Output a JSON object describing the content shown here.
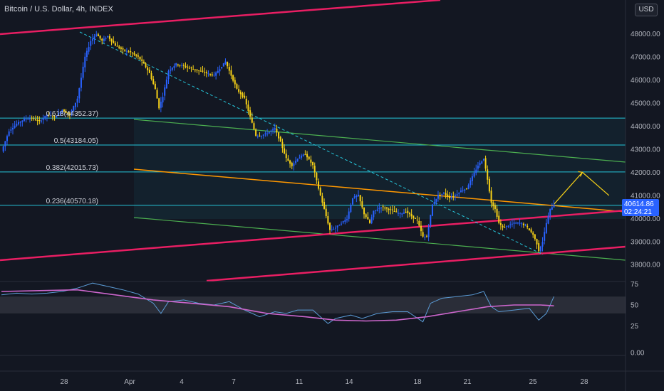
{
  "header": {
    "title": "Bitcoin / U.S. Dollar, 4h, INDEX",
    "currency": "USD"
  },
  "price_label": {
    "value": "40614.86",
    "countdown": "02:24:21"
  },
  "colors": {
    "background": "#131722",
    "up": "#2962ff",
    "down": "#f7d117",
    "fib": "#26c6da",
    "channel_pink": "#e91e63",
    "trend_green": "#4caf50",
    "trend_orange": "#ff9800",
    "rsi": "#cc66cc",
    "projection": "#f7d117"
  },
  "chart_data": {
    "type": "candlestick",
    "title": "Bitcoin / U.S. Dollar, 4h, INDEX",
    "price_axis": {
      "ticks": [
        "48000.00",
        "47000.00",
        "46000.00",
        "45000.00",
        "44000.00",
        "43000.00",
        "42000.00",
        "41000.00",
        "40000.00",
        "39000.00",
        "38000.00"
      ],
      "ylim": [
        37500,
        48800
      ]
    },
    "time_axis": {
      "labels": [
        "28",
        "Apr",
        "4",
        "7",
        "11",
        "14",
        "18",
        "21",
        "25",
        "28"
      ]
    },
    "fib_levels": [
      {
        "ratio": "0.618",
        "value": "44352.37",
        "label": "0.618(44352.37)"
      },
      {
        "ratio": "0.5",
        "value": "43184.05",
        "label": "0.5(43184.05)"
      },
      {
        "ratio": "0.382",
        "value": "42015.73",
        "label": "0.382(42015.73)"
      },
      {
        "ratio": "0.236",
        "value": "40570.18",
        "label": "0.236(40570.18)"
      }
    ],
    "price_path": [
      [
        0,
        42900
      ],
      [
        4,
        43800
      ],
      [
        8,
        44100
      ],
      [
        12,
        44300
      ],
      [
        16,
        44350
      ],
      [
        20,
        44200
      ],
      [
        24,
        44500
      ],
      [
        28,
        44400
      ],
      [
        32,
        44700
      ],
      [
        36,
        44500
      ],
      [
        40,
        45200
      ],
      [
        44,
        47000
      ],
      [
        47,
        47700
      ],
      [
        50,
        48000
      ],
      [
        53,
        47700
      ],
      [
        56,
        47900
      ],
      [
        60,
        47500
      ],
      [
        64,
        47300
      ],
      [
        68,
        47200
      ],
      [
        72,
        47000
      ],
      [
        75,
        46700
      ],
      [
        78,
        46300
      ],
      [
        81,
        45600
      ],
      [
        83,
        44800
      ],
      [
        85,
        45300
      ],
      [
        88,
        46400
      ],
      [
        92,
        46700
      ],
      [
        96,
        46600
      ],
      [
        100,
        46500
      ],
      [
        104,
        46400
      ],
      [
        108,
        46300
      ],
      [
        112,
        46200
      ],
      [
        116,
        46600
      ],
      [
        118,
        46800
      ],
      [
        121,
        46200
      ],
      [
        124,
        45600
      ],
      [
        128,
        45200
      ],
      [
        131,
        44400
      ],
      [
        134,
        43600
      ],
      [
        137,
        43600
      ],
      [
        140,
        43700
      ],
      [
        144,
        43900
      ],
      [
        147,
        43300
      ],
      [
        150,
        42600
      ],
      [
        153,
        42300
      ],
      [
        156,
        42600
      ],
      [
        160,
        42800
      ],
      [
        164,
        42300
      ],
      [
        167,
        41300
      ],
      [
        170,
        40400
      ],
      [
        173,
        39500
      ],
      [
        176,
        39600
      ],
      [
        179,
        39800
      ],
      [
        182,
        40000
      ],
      [
        185,
        40900
      ],
      [
        188,
        41000
      ],
      [
        191,
        40200
      ],
      [
        194,
        39800
      ],
      [
        196,
        40300
      ],
      [
        200,
        40500
      ],
      [
        204,
        40400
      ],
      [
        207,
        40300
      ],
      [
        210,
        40200
      ],
      [
        213,
        40300
      ],
      [
        216,
        40100
      ],
      [
        219,
        39900
      ],
      [
        222,
        39200
      ],
      [
        224,
        39200
      ],
      [
        227,
        40600
      ],
      [
        230,
        41000
      ],
      [
        233,
        41100
      ],
      [
        236,
        40900
      ],
      [
        239,
        41000
      ],
      [
        242,
        41200
      ],
      [
        245,
        41300
      ],
      [
        248,
        41800
      ],
      [
        251,
        42300
      ],
      [
        254,
        42600
      ],
      [
        256,
        41700
      ],
      [
        258,
        40700
      ],
      [
        260,
        40400
      ],
      [
        262,
        39800
      ],
      [
        264,
        39600
      ],
      [
        267,
        39700
      ],
      [
        270,
        39800
      ],
      [
        273,
        39800
      ],
      [
        276,
        39700
      ],
      [
        278,
        39500
      ],
      [
        280,
        39300
      ],
      [
        282,
        38900
      ],
      [
        283,
        38600
      ],
      [
        285,
        39000
      ],
      [
        287,
        39800
      ],
      [
        289,
        40400
      ],
      [
        291,
        40615
      ]
    ],
    "projection_path": [
      [
        291,
        40615
      ],
      [
        306,
        42000
      ],
      [
        320,
        41000
      ]
    ],
    "lines": [
      "fib levels",
      "trend channel green",
      "trend line orange",
      "channel pink",
      "dashed cyan trend",
      "yellow projection arrow"
    ],
    "rsi": {
      "ticks": [
        "75",
        "50",
        "25",
        "0.00"
      ],
      "ylim": [
        0,
        80
      ],
      "band": [
        40,
        60
      ],
      "values": [
        [
          0,
          62
        ],
        [
          8,
          64
        ],
        [
          16,
          63
        ],
        [
          24,
          64
        ],
        [
          32,
          66
        ],
        [
          40,
          70
        ],
        [
          48,
          76
        ],
        [
          56,
          72
        ],
        [
          64,
          68
        ],
        [
          72,
          63
        ],
        [
          80,
          52
        ],
        [
          84,
          40
        ],
        [
          88,
          54
        ],
        [
          96,
          56
        ],
        [
          104,
          52
        ],
        [
          112,
          50
        ],
        [
          120,
          54
        ],
        [
          128,
          44
        ],
        [
          136,
          36
        ],
        [
          144,
          42
        ],
        [
          150,
          40
        ],
        [
          156,
          44
        ],
        [
          164,
          44
        ],
        [
          168,
          36
        ],
        [
          172,
          28
        ],
        [
          176,
          34
        ],
        [
          184,
          38
        ],
        [
          190,
          34
        ],
        [
          198,
          40
        ],
        [
          206,
          42
        ],
        [
          214,
          42
        ],
        [
          222,
          30
        ],
        [
          226,
          52
        ],
        [
          232,
          58
        ],
        [
          240,
          60
        ],
        [
          248,
          62
        ],
        [
          254,
          66
        ],
        [
          258,
          48
        ],
        [
          262,
          42
        ],
        [
          270,
          44
        ],
        [
          278,
          46
        ],
        [
          283,
          32
        ],
        [
          287,
          40
        ],
        [
          291,
          60
        ]
      ],
      "ma_values": [
        [
          0,
          66
        ],
        [
          20,
          67
        ],
        [
          40,
          68
        ],
        [
          60,
          62
        ],
        [
          80,
          56
        ],
        [
          100,
          52
        ],
        [
          120,
          48
        ],
        [
          140,
          40
        ],
        [
          160,
          36
        ],
        [
          176,
          32
        ],
        [
          192,
          31
        ],
        [
          208,
          32
        ],
        [
          224,
          36
        ],
        [
          240,
          42
        ],
        [
          256,
          48
        ],
        [
          270,
          50
        ],
        [
          284,
          50
        ],
        [
          291,
          49
        ]
      ]
    },
    "grid": false,
    "legend": "top-left"
  }
}
